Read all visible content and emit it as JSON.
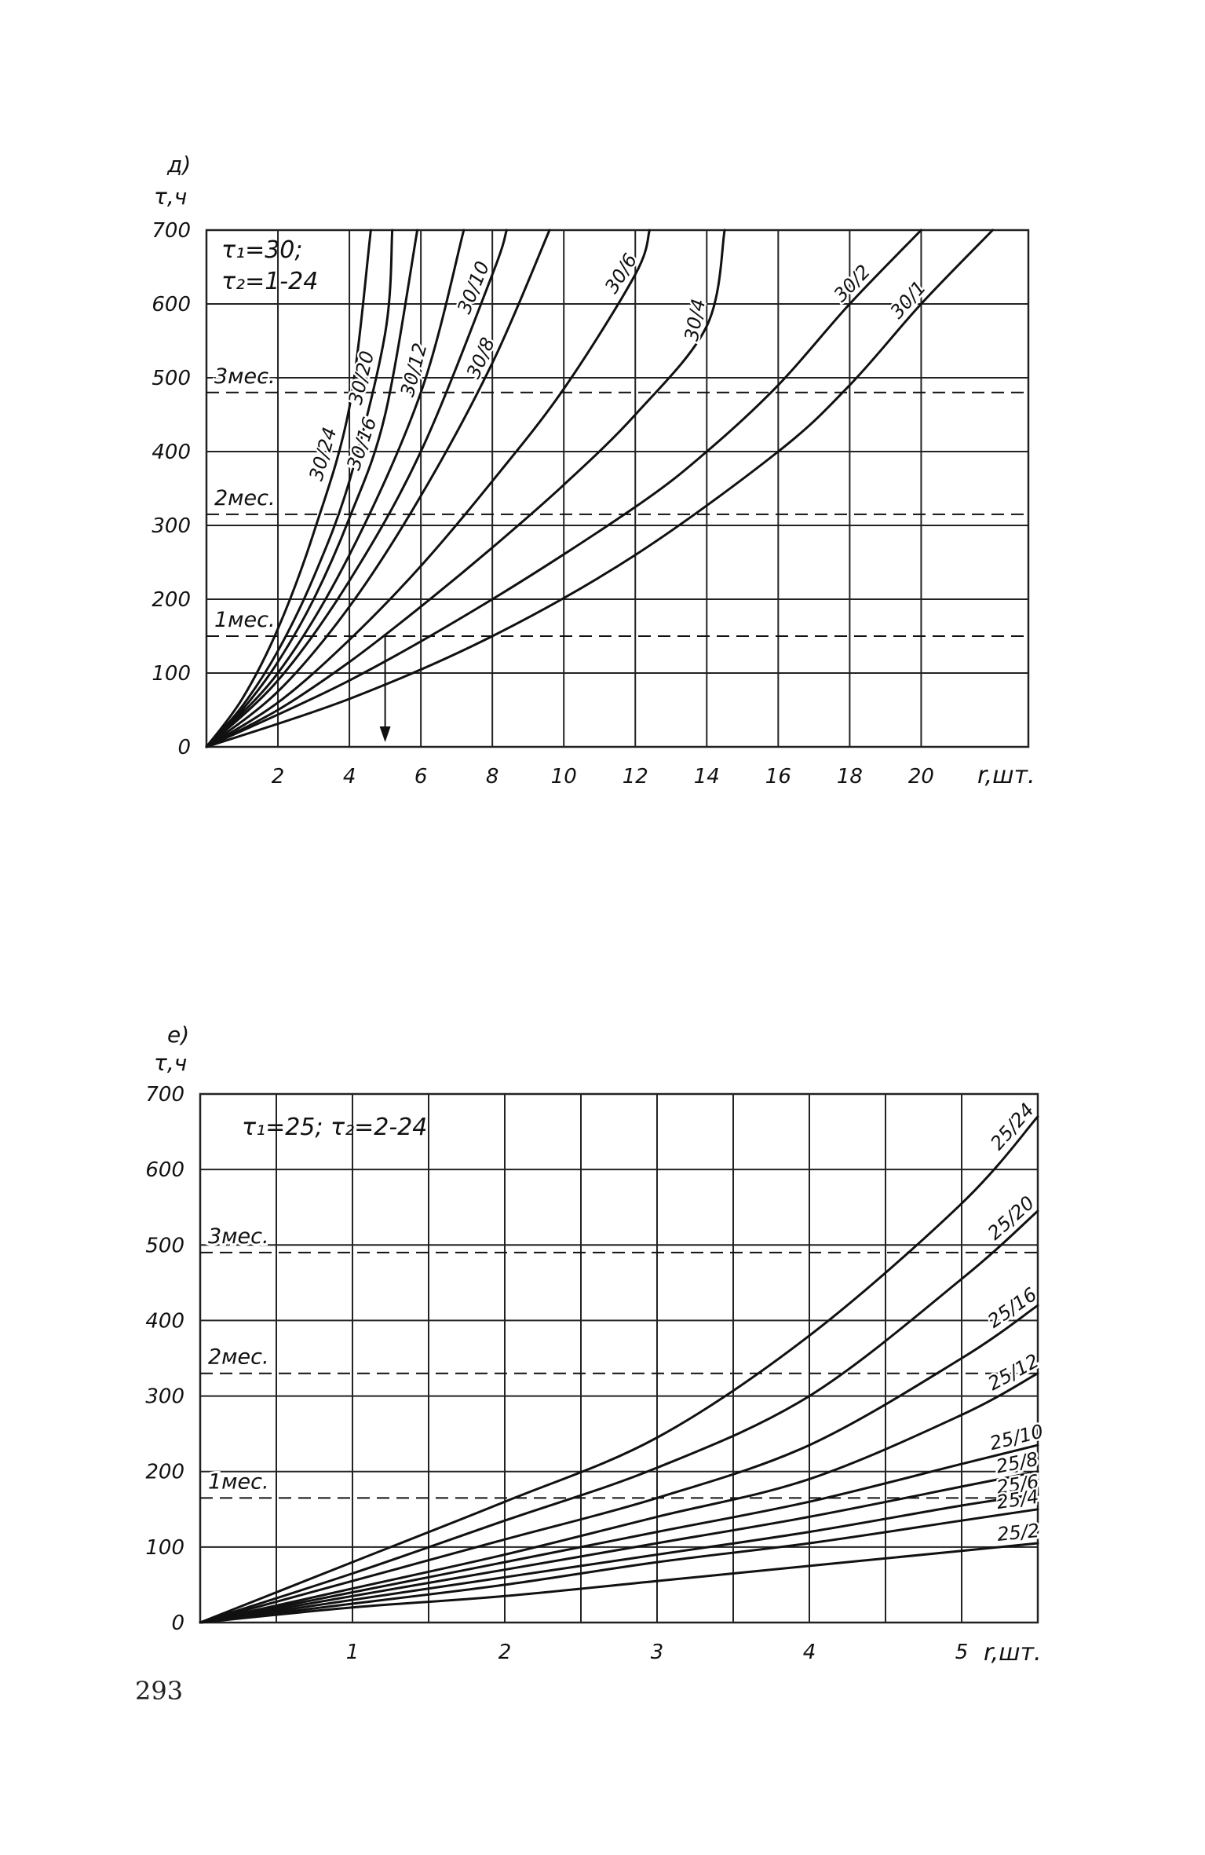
{
  "page_number": "293",
  "colors": {
    "ink": "#111111",
    "grid": "#222222",
    "paper": "#ffffff"
  },
  "chart_data": [
    {
      "id": "d",
      "type": "line",
      "panel_label": "д)",
      "ylabel": "τ,ч",
      "xlabel": "r,шт.",
      "params_line1": "τ₁=30;",
      "params_line2": "τ₂=1-24",
      "xlim": [
        0,
        23
      ],
      "ylim": [
        0,
        700
      ],
      "xticks": [
        2,
        4,
        6,
        8,
        10,
        12,
        14,
        16,
        18,
        20
      ],
      "yticks": [
        0,
        100,
        200,
        300,
        400,
        500,
        600,
        700
      ],
      "grid": true,
      "reference_lines": [
        {
          "label": "1мес.",
          "y": 150
        },
        {
          "label": "2мес.",
          "y": 315
        },
        {
          "label": "3мес.",
          "y": 480
        }
      ],
      "marker": {
        "x": 5,
        "from_y": 150,
        "to_y": 0
      },
      "series": [
        {
          "name": "30/24",
          "x": [
            0,
            1,
            2,
            3,
            4,
            4.6
          ],
          "y": [
            0,
            65,
            160,
            290,
            460,
            700
          ]
        },
        {
          "name": "30/20",
          "x": [
            0,
            1,
            2,
            3,
            4,
            5,
            5.2
          ],
          "y": [
            0,
            55,
            130,
            230,
            360,
            560,
            700
          ]
        },
        {
          "name": "30/16",
          "x": [
            0,
            1,
            2,
            3,
            4,
            5,
            5.9
          ],
          "y": [
            0,
            50,
            115,
            200,
            310,
            450,
            700
          ]
        },
        {
          "name": "30/12",
          "x": [
            0,
            2,
            4,
            6,
            7.2
          ],
          "y": [
            0,
            100,
            260,
            480,
            700
          ]
        },
        {
          "name": "30/10",
          "x": [
            0,
            2,
            4,
            6,
            8,
            8.4
          ],
          "y": [
            0,
            90,
            225,
            400,
            640,
            700
          ]
        },
        {
          "name": "30/8",
          "x": [
            0,
            2,
            4,
            6,
            8,
            9.6
          ],
          "y": [
            0,
            75,
            190,
            340,
            520,
            700
          ]
        },
        {
          "name": "30/6",
          "x": [
            0,
            2,
            4,
            6,
            8,
            10,
            12,
            12.4
          ],
          "y": [
            0,
            60,
            145,
            245,
            360,
            485,
            640,
            700
          ]
        },
        {
          "name": "30/4",
          "x": [
            0,
            2,
            4,
            6,
            8,
            10,
            12,
            14,
            14.5
          ],
          "y": [
            0,
            50,
            115,
            190,
            270,
            355,
            450,
            570,
            700
          ]
        },
        {
          "name": "30/2",
          "x": [
            0,
            4,
            8,
            12,
            14,
            16,
            18,
            20
          ],
          "y": [
            0,
            90,
            200,
            325,
            400,
            490,
            600,
            700
          ]
        },
        {
          "name": "30/1",
          "x": [
            0,
            4,
            8,
            12,
            16,
            18,
            20,
            22
          ],
          "y": [
            0,
            65,
            150,
            260,
            400,
            490,
            600,
            700
          ]
        }
      ]
    },
    {
      "id": "e",
      "type": "line",
      "panel_label": "е)",
      "ylabel": "τ,ч",
      "xlabel": "r,шт.",
      "params_line1": "τ₁=25; τ₂=2-24",
      "xlim": [
        0,
        5.5
      ],
      "ylim": [
        0,
        700
      ],
      "xticks": [
        1,
        2,
        3,
        4,
        5
      ],
      "yticks": [
        0,
        100,
        200,
        300,
        400,
        500,
        600,
        700
      ],
      "grid": true,
      "reference_lines": [
        {
          "label": "1мес.",
          "y": 165
        },
        {
          "label": "2мес.",
          "y": 330
        },
        {
          "label": "3мес.",
          "y": 490
        }
      ],
      "series": [
        {
          "name": "25/24",
          "x": [
            0,
            1,
            2,
            3,
            4,
            5,
            5.5
          ],
          "y": [
            0,
            80,
            160,
            245,
            380,
            555,
            670
          ]
        },
        {
          "name": "25/20",
          "x": [
            0,
            1,
            2,
            3,
            4,
            5,
            5.5
          ],
          "y": [
            0,
            65,
            135,
            205,
            300,
            455,
            545
          ]
        },
        {
          "name": "25/16",
          "x": [
            0,
            1,
            2,
            3,
            4,
            5,
            5.5
          ],
          "y": [
            0,
            55,
            110,
            165,
            235,
            350,
            420
          ]
        },
        {
          "name": "25/12",
          "x": [
            0,
            1,
            2,
            3,
            4,
            5,
            5.5
          ],
          "y": [
            0,
            45,
            90,
            140,
            190,
            275,
            330
          ]
        },
        {
          "name": "25/10",
          "x": [
            0,
            1,
            2,
            3,
            4,
            5,
            5.5
          ],
          "y": [
            0,
            40,
            80,
            120,
            160,
            210,
            235
          ]
        },
        {
          "name": "25/8",
          "x": [
            0,
            1,
            2,
            3,
            4,
            5,
            5.5
          ],
          "y": [
            0,
            35,
            70,
            105,
            140,
            180,
            200
          ]
        },
        {
          "name": "25/6",
          "x": [
            0,
            1,
            2,
            3,
            4,
            5,
            5.5
          ],
          "y": [
            0,
            30,
            60,
            90,
            120,
            155,
            170
          ]
        },
        {
          "name": "25/4",
          "x": [
            0,
            1,
            2,
            3,
            4,
            5,
            5.5
          ],
          "y": [
            0,
            25,
            50,
            80,
            105,
            135,
            150
          ]
        },
        {
          "name": "25/2",
          "x": [
            0,
            1,
            2,
            3,
            4,
            5,
            5.5
          ],
          "y": [
            0,
            20,
            35,
            55,
            75,
            95,
            105
          ]
        }
      ]
    }
  ]
}
